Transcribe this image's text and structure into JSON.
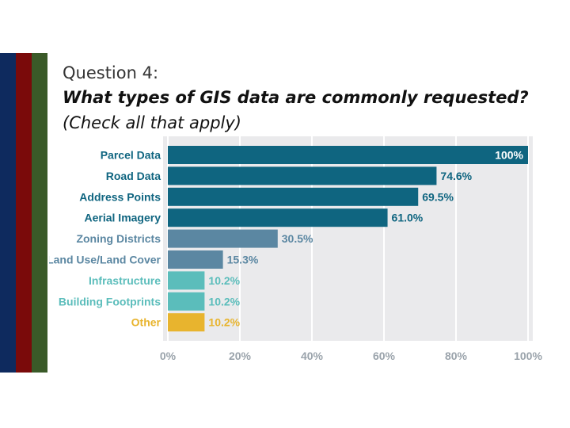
{
  "slide": {
    "question_label": "Question 4:",
    "question_text": "What types of GIS data are commonly requested?",
    "question_note": "(Check all that apply)",
    "stripe_colors": [
      "#0e2a5e",
      "#7a0a0a",
      "#3a5a28"
    ]
  },
  "chart_data": {
    "type": "bar",
    "orientation": "horizontal",
    "categories": [
      "Parcel Data",
      "Road Data",
      "Address Points",
      "Aerial Imagery",
      "Zoning Districts",
      "Land Use/Land Cover",
      "Infrastructure",
      "Building Footprints",
      "Other"
    ],
    "values": [
      100,
      74.6,
      69.5,
      61.0,
      30.5,
      15.3,
      10.2,
      10.2,
      10.2
    ],
    "value_labels": [
      "100%",
      "74.6%",
      "69.5%",
      "61.0%",
      "30.5%",
      "15.3%",
      "10.2%",
      "10.2%",
      "10.2%"
    ],
    "colors": [
      "#0f6580",
      "#0f6580",
      "#0f6580",
      "#0f6580",
      "#5b87a2",
      "#5b87a2",
      "#5bbdbb",
      "#5bbdbb",
      "#e8b42e"
    ],
    "xlim": [
      0,
      100
    ],
    "xticks": [
      "0%",
      "20%",
      "40%",
      "60%",
      "80%",
      "100%"
    ],
    "tick_values": [
      0,
      20,
      40,
      60,
      80,
      100
    ],
    "grid": true,
    "background": "#eaeaec",
    "title": "",
    "xlabel": "",
    "ylabel": ""
  }
}
